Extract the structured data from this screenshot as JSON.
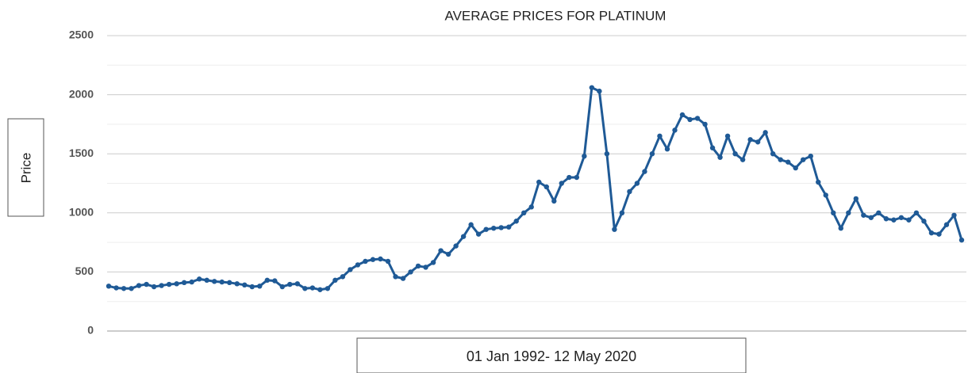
{
  "chart_data": {
    "type": "line",
    "title": "AVERAGE PRICES FOR PLATINUM",
    "ylabel": "Price",
    "xlabel": "01 Jan 1992- 12 May 2020",
    "ylim": [
      0,
      2500
    ],
    "yticks": [
      0,
      500,
      1000,
      1500,
      2000,
      2500
    ],
    "minor_yticks": [
      250,
      750,
      1250,
      1750,
      2250
    ],
    "grid": true,
    "series": [
      {
        "name": "Platinum",
        "color": "#1f5a96",
        "values": [
          380,
          365,
          360,
          360,
          385,
          395,
          375,
          385,
          395,
          400,
          410,
          415,
          440,
          430,
          420,
          415,
          410,
          400,
          390,
          375,
          380,
          430,
          425,
          375,
          395,
          400,
          360,
          365,
          350,
          360,
          430,
          460,
          520,
          560,
          590,
          605,
          610,
          590,
          460,
          445,
          500,
          550,
          540,
          580,
          680,
          650,
          720,
          800,
          900,
          820,
          860,
          870,
          875,
          880,
          930,
          1000,
          1050,
          1260,
          1220,
          1100,
          1250,
          1300,
          1300,
          1480,
          2060,
          2030,
          1500,
          860,
          1000,
          1180,
          1250,
          1350,
          1500,
          1650,
          1540,
          1700,
          1830,
          1790,
          1800,
          1750,
          1550,
          1470,
          1650,
          1500,
          1450,
          1620,
          1600,
          1680,
          1500,
          1450,
          1430,
          1380,
          1450,
          1480,
          1260,
          1150,
          1000,
          870,
          1000,
          1120,
          980,
          960,
          1000,
          950,
          940,
          960,
          940,
          1000,
          930,
          830,
          820,
          900,
          980,
          770
        ]
      }
    ]
  }
}
